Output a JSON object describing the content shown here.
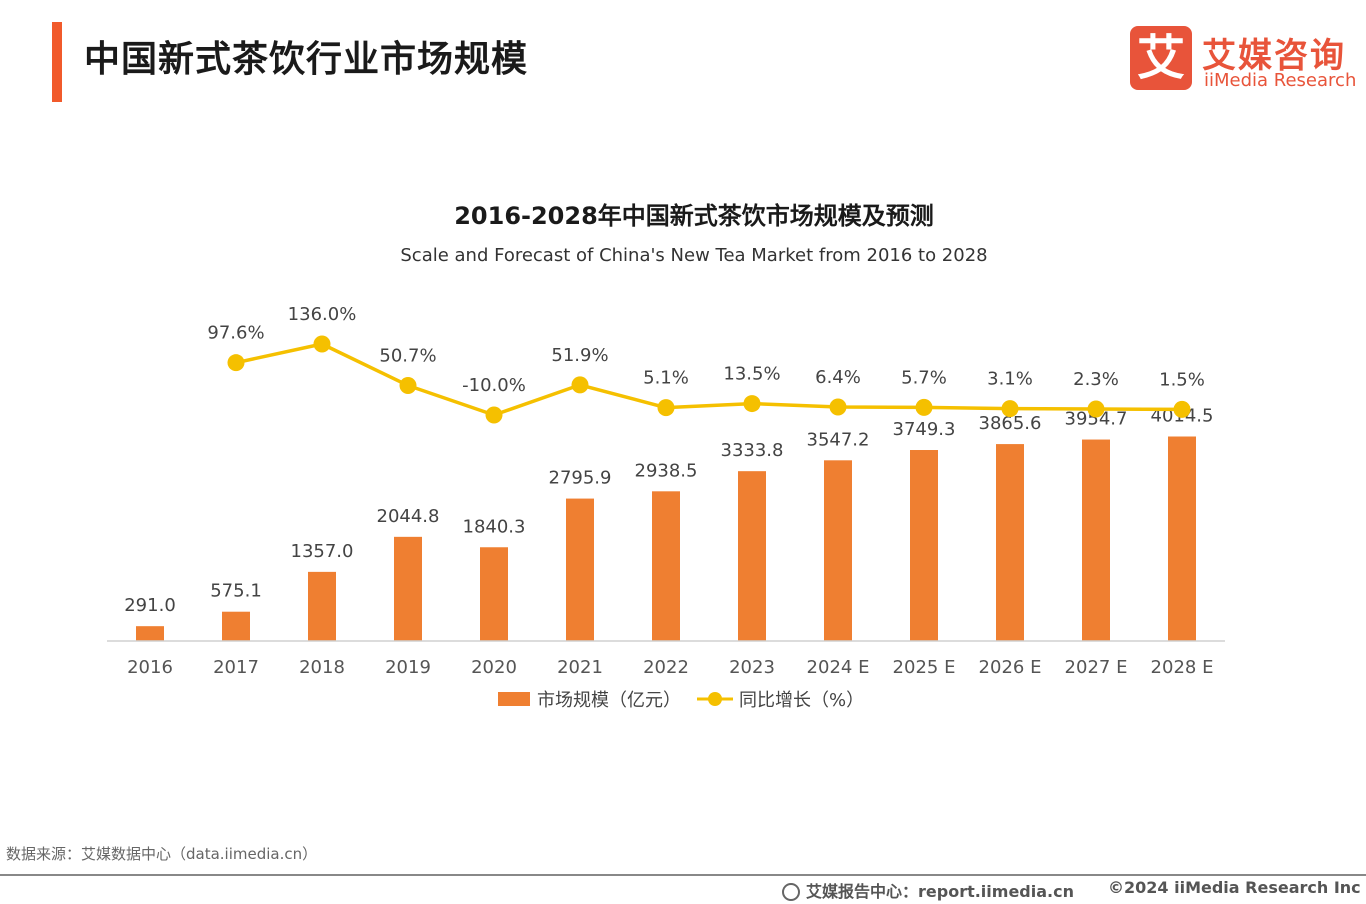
{
  "header": {
    "title": "中国新式茶饮行业市场规模"
  },
  "logo": {
    "mark": "艾",
    "cn": "艾媒咨询",
    "en": "iiMedia Research"
  },
  "colors": {
    "bar": "#ef7f31",
    "line": "#f5c000",
    "accent": "#f15a2b",
    "logo": "#e8543a"
  },
  "chart_data": {
    "type": "bar+line",
    "title": "2016-2028年中国新式茶饮市场规模及预测",
    "subtitle": "Scale and Forecast of China's New Tea Market from 2016 to 2028",
    "categories": [
      "2016",
      "2017",
      "2018",
      "2019",
      "2020",
      "2021",
      "2022",
      "2023",
      "2024 E",
      "2025 E",
      "2026 E",
      "2027 E",
      "2028 E"
    ],
    "series": [
      {
        "name": "市场规模（亿元）",
        "type": "bar",
        "values": [
          291.0,
          575.1,
          1357.0,
          2044.8,
          1840.3,
          2795.9,
          2938.5,
          3333.8,
          3547.2,
          3749.3,
          3865.6,
          3954.7,
          4014.5
        ],
        "labels": [
          "291.0",
          "575.1",
          "1357.0",
          "2044.8",
          "1840.3",
          "2795.9",
          "2938.5",
          "3333.8",
          "3547.2",
          "3749.3",
          "3865.6",
          "3954.7",
          "4014.5"
        ]
      },
      {
        "name": "同比增长（%）",
        "type": "line",
        "values": [
          null,
          97.6,
          136.0,
          50.7,
          -10.0,
          51.9,
          5.1,
          13.5,
          6.4,
          5.7,
          3.1,
          2.3,
          1.5
        ],
        "labels": [
          "",
          "97.6%",
          "136.0%",
          "50.7%",
          "-10.0%",
          "51.9%",
          "5.1%",
          "13.5%",
          "6.4%",
          "5.7%",
          "3.1%",
          "2.3%",
          "1.5%"
        ]
      }
    ],
    "legend": "bottom-center",
    "grid": false
  },
  "footer": {
    "source": "数据来源：艾媒数据中心（data.iimedia.cn）",
    "report": "艾媒报告中心：report.iimedia.cn",
    "copyright": "©2024  iiMedia Research  Inc"
  }
}
